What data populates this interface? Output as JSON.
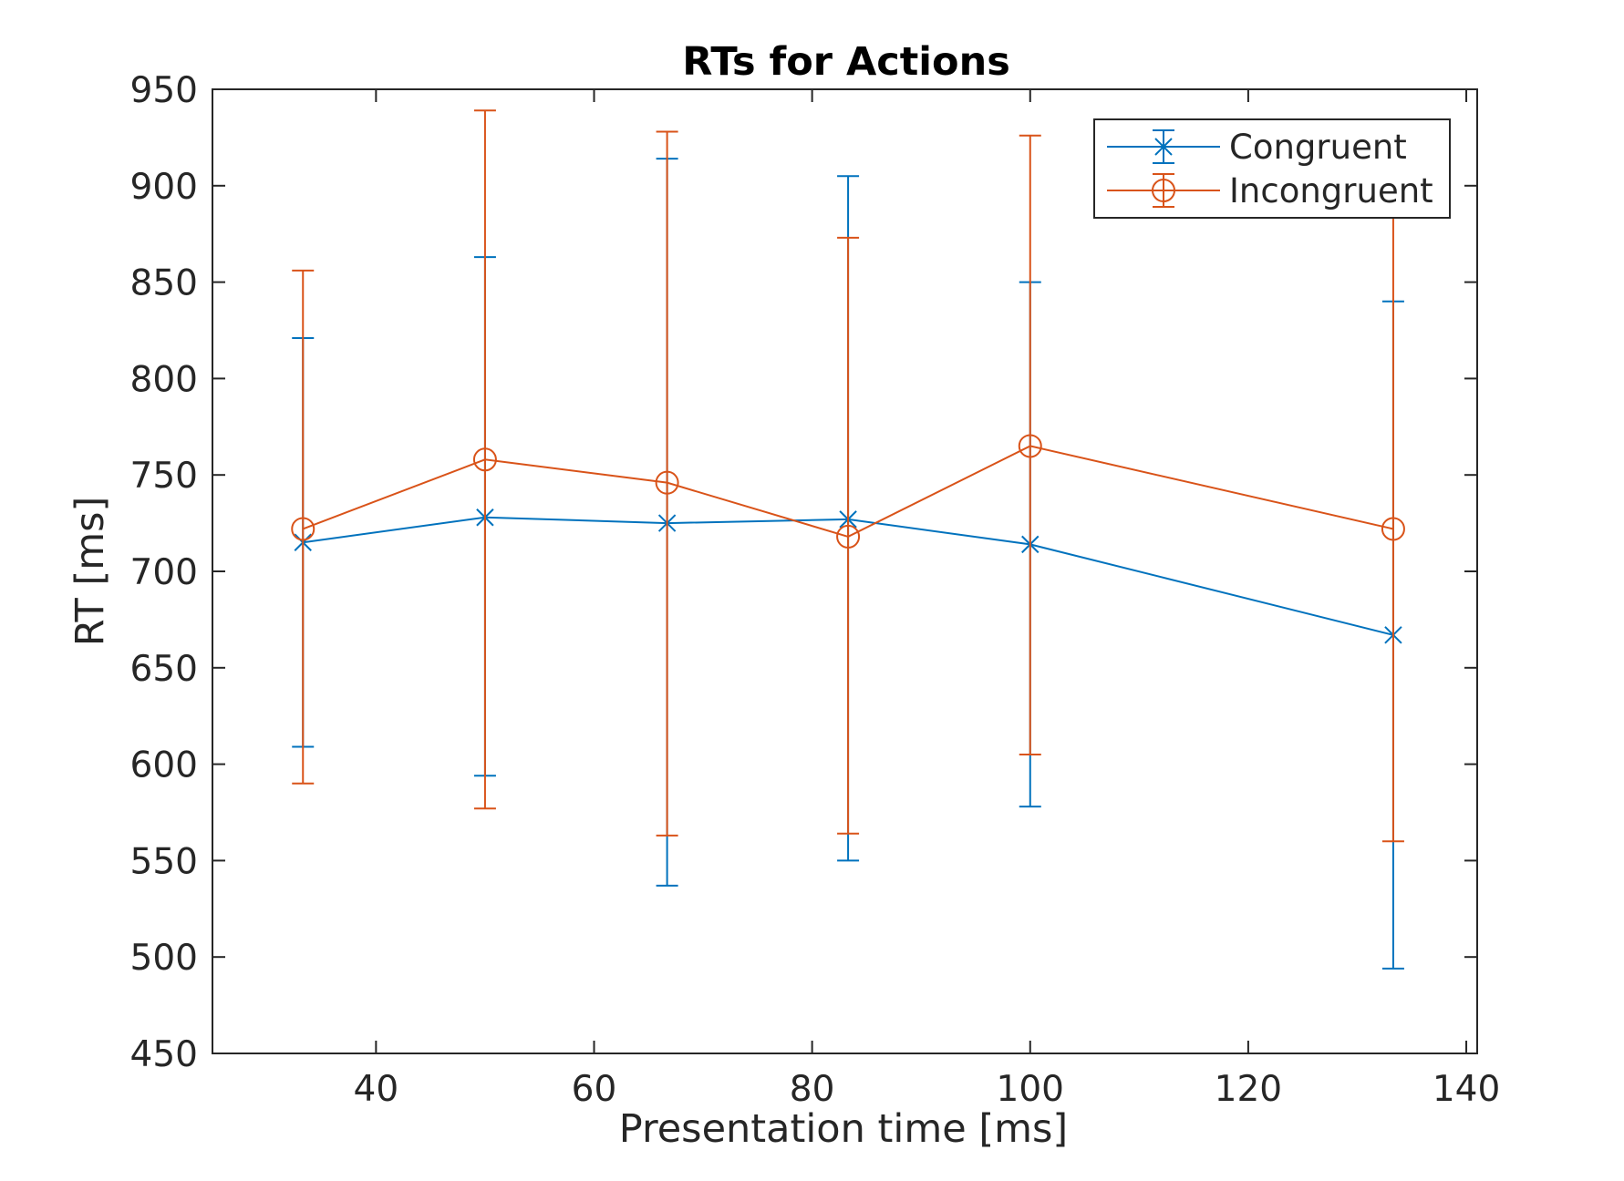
{
  "chart_data": {
    "type": "line",
    "title": "RTs for Actions",
    "xlabel": "Presentation time [ms]",
    "ylabel": "RT [ms]",
    "xlim": [
      25,
      141
    ],
    "ylim": [
      450,
      950
    ],
    "xticks": [
      40,
      60,
      80,
      100,
      120,
      140
    ],
    "yticks": [
      450,
      500,
      550,
      600,
      650,
      700,
      750,
      800,
      850,
      900,
      950
    ],
    "grid": false,
    "legend_position": "top-right",
    "x": [
      33.3,
      50,
      66.7,
      83.3,
      100,
      133.3
    ],
    "series": [
      {
        "name": "Congruent",
        "color": "#0072bd",
        "marker": "x",
        "values": [
          715,
          728,
          725,
          727,
          714,
          667
        ],
        "err_low": [
          609,
          594,
          537,
          550,
          578,
          494
        ],
        "err_high": [
          821,
          863,
          914,
          905,
          850,
          840
        ]
      },
      {
        "name": "Incongruent",
        "color": "#d95319",
        "marker": "o",
        "values": [
          722,
          758,
          746,
          718,
          765,
          722
        ],
        "err_low": [
          590,
          577,
          563,
          564,
          605,
          560
        ],
        "err_high": [
          856,
          939,
          928,
          873,
          926,
          885
        ]
      }
    ]
  }
}
